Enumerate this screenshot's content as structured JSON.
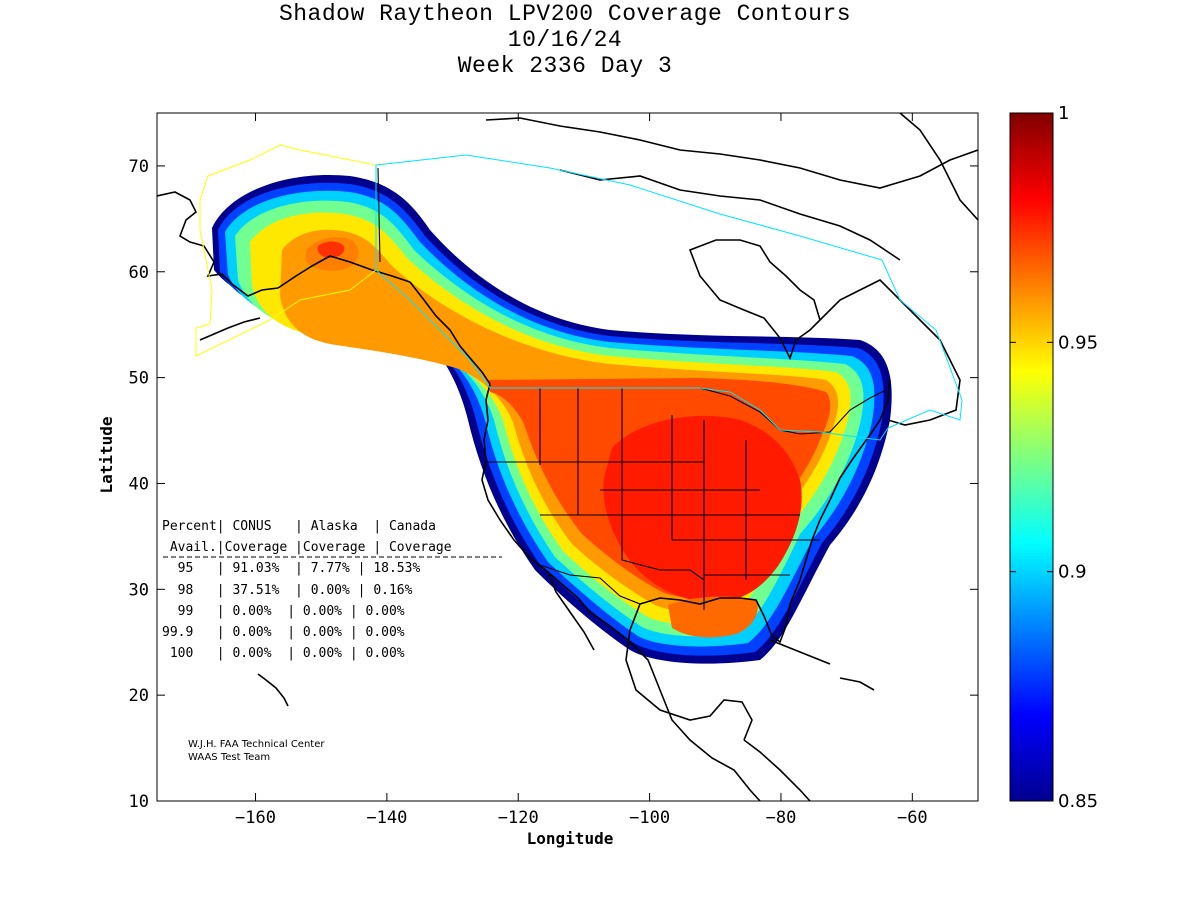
{
  "title": {
    "line1": "Shadow Raytheon LPV200 Coverage Contours",
    "line2": "10/16/24",
    "line3": "Week 2336 Day 3"
  },
  "axes": {
    "xlabel": "Longitude",
    "ylabel": "Latitude",
    "xlim": [
      -175,
      -50
    ],
    "ylim": [
      10,
      75
    ],
    "xticks": [
      -160,
      -140,
      -120,
      -100,
      -80,
      -60
    ],
    "yticks": [
      10,
      20,
      30,
      40,
      50,
      60,
      70
    ]
  },
  "colorbar": {
    "range": [
      0.85,
      1
    ],
    "ticks": [
      "1",
      "0.95",
      "0.9",
      "0.85"
    ],
    "tick_values": [
      1,
      0.95,
      0.9,
      0.85
    ],
    "colormap": "jet"
  },
  "table": {
    "header1": "Percent| CONUS   | Alaska  | Canada",
    "header2": " Avail.|Coverage |Coverage | Coverage",
    "rows": [
      "  95   | 91.03%  | 7.77% | 18.53%",
      "  98   | 37.51%  | 0.00% | 0.16%",
      "  99   | 0.00%  | 0.00% | 0.00%",
      "99.9   | 0.00%  | 0.00% | 0.00%",
      " 100   | 0.00%  | 0.00% | 0.00%"
    ]
  },
  "credit": {
    "line1": "W.J.H. FAA Technical Center",
    "line2": "WAAS Test Team"
  },
  "colors": {
    "dark_red": "#800000",
    "red": "#ff2000",
    "orange_red": "#ff4a00",
    "orange": "#ff9000",
    "yellow": "#ffff00",
    "cyan": "#00ffff",
    "blue": "#0030ff",
    "navy": "#00008f",
    "alaska_boundary": "#ffff00",
    "canada_boundary": "#00e5ff"
  },
  "chart_data": {
    "type": "heatmap",
    "title": "Shadow Raytheon LPV200 Coverage Contours",
    "xlabel": "Longitude",
    "ylabel": "Latitude",
    "xlim": [
      -175,
      -50
    ],
    "ylim": [
      10,
      75
    ],
    "colorbar_range": [
      0.85,
      1
    ],
    "coverage_table": [
      {
        "percent": "95",
        "conus": "91.03%",
        "alaska": "7.77%",
        "canada": "18.53%"
      },
      {
        "percent": "98",
        "conus": "37.51%",
        "alaska": "0.00%",
        "canada": "0.16%"
      },
      {
        "percent": "99",
        "conus": "0.00%",
        "alaska": "0.00%",
        "canada": "0.00%"
      },
      {
        "percent": "99.9",
        "conus": "0.00%",
        "alaska": "0.00%",
        "canada": "0.00%"
      },
      {
        "percent": "100",
        "conus": "0.00%",
        "alaska": "0.00%",
        "canada": "0.00%"
      }
    ]
  }
}
